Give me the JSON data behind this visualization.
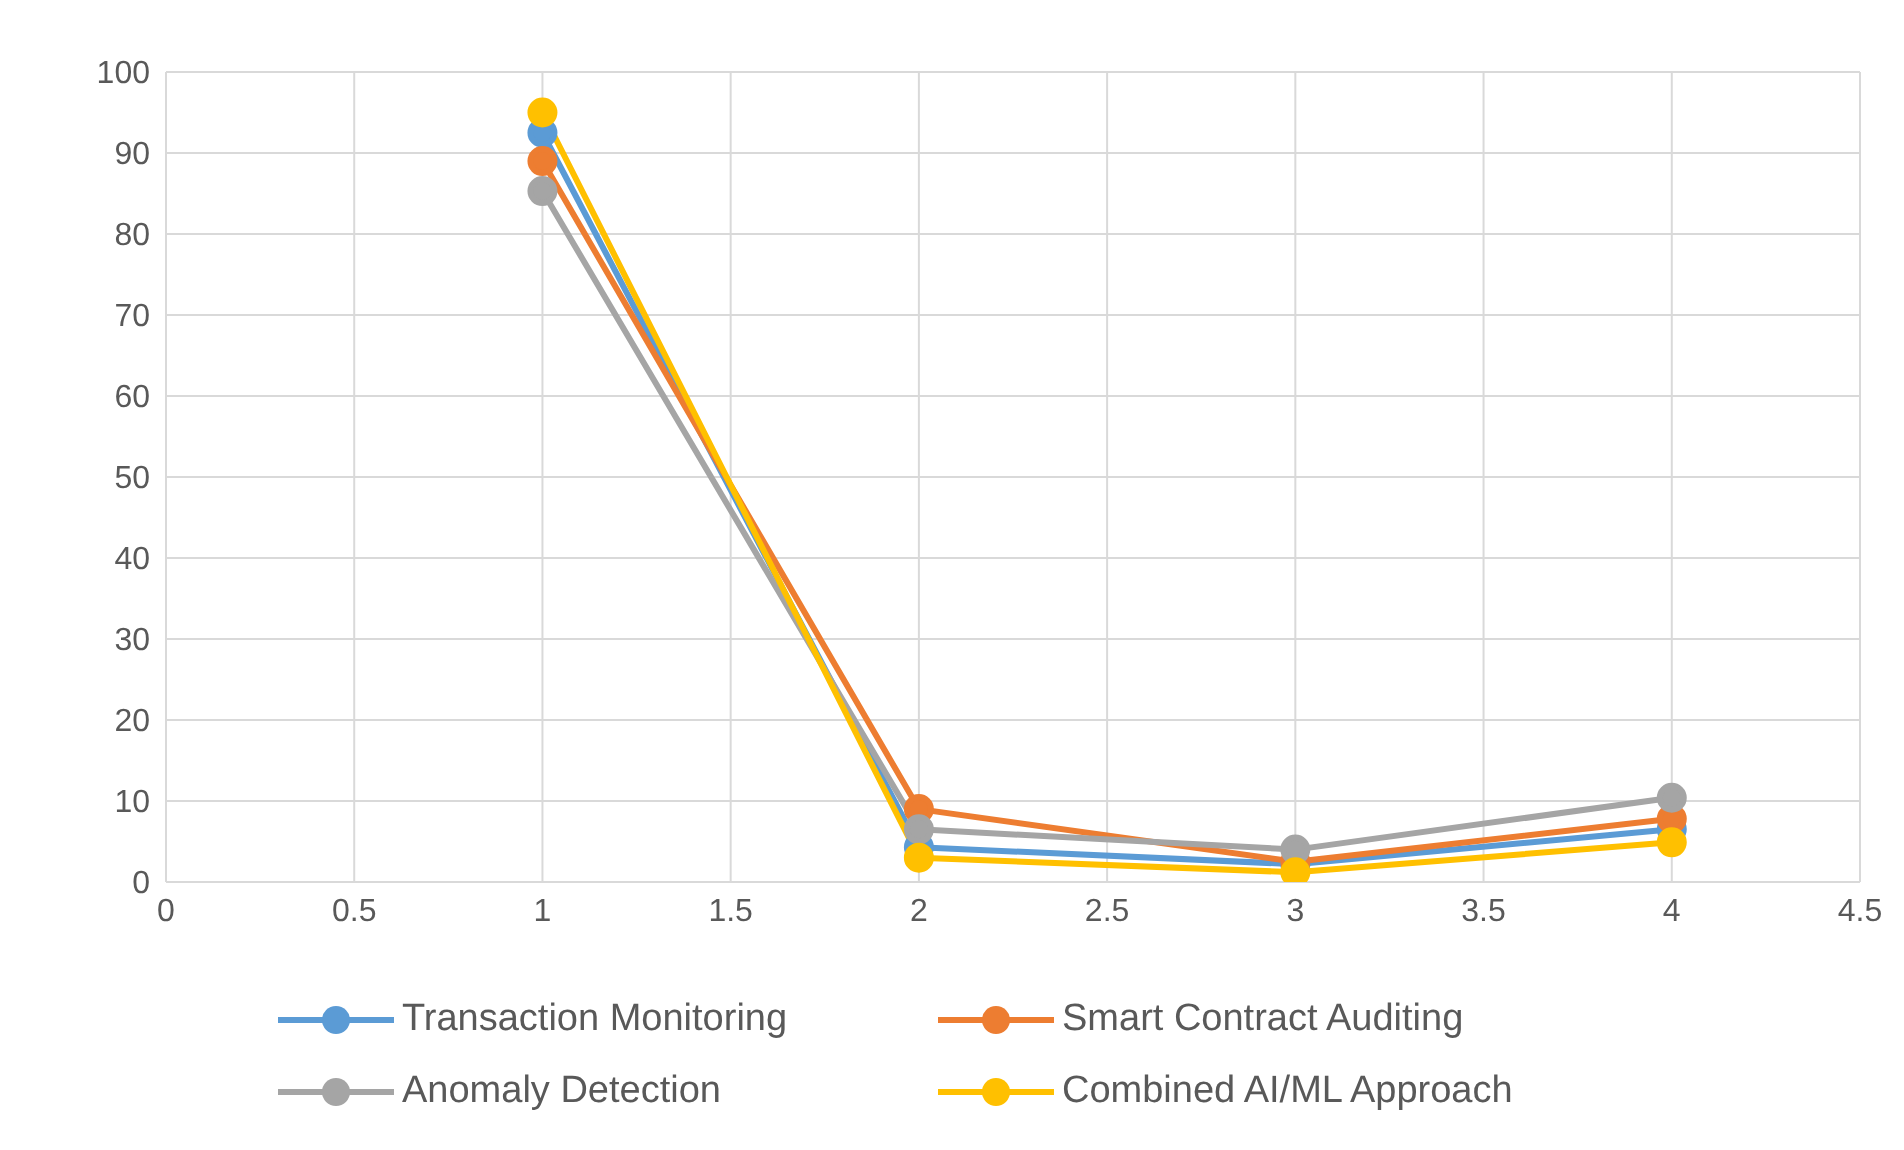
{
  "chart_data": {
    "type": "line",
    "x": [
      1,
      2,
      3,
      4
    ],
    "series": [
      {
        "name": "Transaction Monitoring",
        "color": "#5b9bd5",
        "values": [
          92.5,
          4.3,
          2.2,
          6.5
        ]
      },
      {
        "name": "Smart Contract Auditing",
        "color": "#ed7d31",
        "values": [
          89,
          9,
          2.5,
          7.8
        ]
      },
      {
        "name": "Anomaly Detection",
        "color": "#a5a5a5",
        "values": [
          85.3,
          6.5,
          4,
          10.4
        ]
      },
      {
        "name": "Combined AI/ML Approach",
        "color": "#ffc000",
        "values": [
          95,
          3,
          1.2,
          4.9
        ]
      }
    ],
    "xlim": [
      0,
      4.5
    ],
    "xticks": [
      0,
      0.5,
      1,
      1.5,
      2,
      2.5,
      3,
      3.5,
      4,
      4.5
    ],
    "ylim": [
      0,
      100
    ],
    "yticks": [
      0,
      10,
      20,
      30,
      40,
      50,
      60,
      70,
      80,
      90,
      100
    ],
    "grid": true,
    "legend": "bottom",
    "marker": "circle",
    "line_style": "solid"
  }
}
